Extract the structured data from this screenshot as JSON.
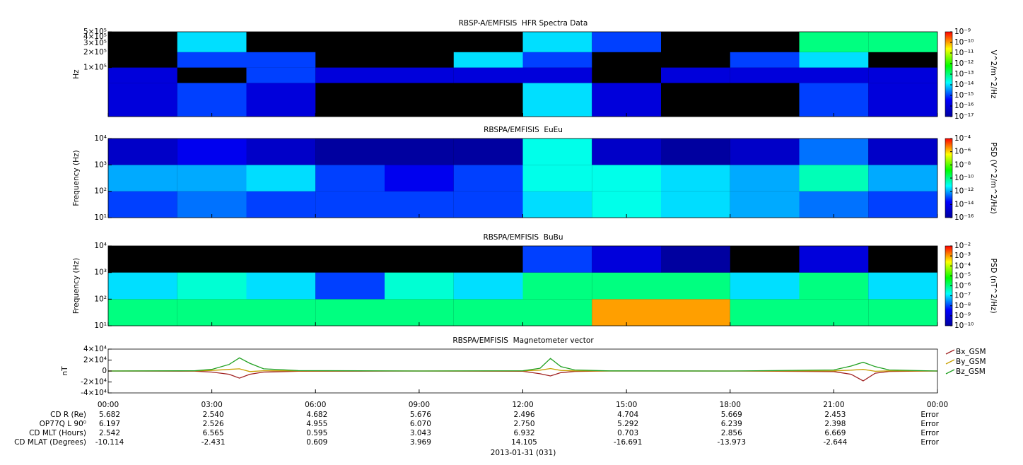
{
  "chart_data": [
    {
      "type": "heatmap",
      "title": "RBSP-A/EMFISIS  HFR Spectra Data",
      "y_label": "Hz",
      "log_y": true,
      "xlim": [
        0,
        24
      ],
      "xticks": [
        0,
        3,
        6,
        9,
        12,
        15,
        18,
        21,
        24
      ],
      "ylim": [
        11000,
        500000
      ],
      "yticks": [
        {
          "value": 100000,
          "label": "1×10⁵"
        },
        {
          "value": 200000,
          "label": "2×10⁵"
        },
        {
          "value": 300000,
          "label": "3×10⁵"
        },
        {
          "value": 400000,
          "label": "4×10⁵"
        },
        {
          "value": 500000,
          "label": "5×10⁵"
        }
      ],
      "x_edges": [
        0,
        2,
        4,
        6,
        8,
        10,
        12,
        14,
        16,
        18,
        20,
        22,
        24
      ],
      "y_edges": [
        11000,
        50000,
        100000,
        200000,
        500000
      ],
      "z": [
        [
          1e-16,
          1e-15,
          1e-16,
          null,
          null,
          null,
          1e-14,
          1e-16,
          null,
          null,
          1e-15,
          1e-16
        ],
        [
          1e-16,
          null,
          1e-15,
          1e-16,
          1e-16,
          1e-16,
          1e-16,
          null,
          1e-16,
          1e-16,
          1e-16,
          1e-16
        ],
        [
          null,
          1e-15,
          1e-15,
          null,
          null,
          1e-14,
          1e-15,
          null,
          null,
          1e-15,
          1e-14,
          null
        ],
        [
          null,
          1e-14,
          null,
          null,
          null,
          null,
          1e-14,
          1e-15,
          null,
          null,
          1e-13,
          1e-13
        ]
      ],
      "colorbar": {
        "label": "V^2/m^2/Hz",
        "lim": [
          1e-17,
          1e-09
        ],
        "colors": [
          "#0000a0",
          "#0000ff",
          "#00ffff",
          "#00ff00",
          "#ffff00",
          "#ff0000"
        ],
        "ticks": [
          {
            "value": 1e-09,
            "label": "10⁻⁹"
          },
          {
            "value": 1e-10,
            "label": "10⁻¹⁰"
          },
          {
            "value": 1e-11,
            "label": "10⁻¹¹"
          },
          {
            "value": 1e-12,
            "label": "10⁻¹²"
          },
          {
            "value": 1e-13,
            "label": "10⁻¹³"
          },
          {
            "value": 1e-14,
            "label": "10⁻¹⁴"
          },
          {
            "value": 1e-15,
            "label": "10⁻¹⁵"
          },
          {
            "value": 1e-16,
            "label": "10⁻¹⁶"
          },
          {
            "value": 1e-17,
            "label": "10⁻¹⁷"
          }
        ]
      }
    },
    {
      "type": "heatmap",
      "title": "RBSPA/EMFISIS  EuEu",
      "y_label": "Frequency (Hz)",
      "log_y": true,
      "xlim": [
        0,
        24
      ],
      "xticks": [
        0,
        3,
        6,
        9,
        12,
        15,
        18,
        21,
        24
      ],
      "ylim": [
        10,
        10000
      ],
      "yticks": [
        {
          "value": 10,
          "label": "10¹"
        },
        {
          "value": 100,
          "label": "10²"
        },
        {
          "value": 1000,
          "label": "10³"
        },
        {
          "value": 10000,
          "label": "10⁴"
        }
      ],
      "x_edges": [
        0,
        2,
        4,
        6,
        8,
        10,
        12,
        14,
        16,
        18,
        20,
        22,
        24
      ],
      "y_edges": [
        10,
        100,
        1000,
        10000
      ],
      "z": [
        [
          1e-13,
          3e-13,
          1e-13,
          1e-13,
          1e-13,
          1e-13,
          3e-12,
          1e-11,
          3e-12,
          1e-12,
          3e-13,
          1e-13
        ],
        [
          1e-12,
          1e-12,
          3e-12,
          1e-13,
          1e-14,
          1e-13,
          1e-11,
          1e-11,
          3e-12,
          1e-12,
          3e-11,
          1e-12
        ],
        [
          1e-15,
          1e-14,
          1e-15,
          1e-16,
          1e-16,
          1e-16,
          1e-11,
          1e-15,
          1e-16,
          1e-15,
          3e-13,
          1e-15
        ]
      ],
      "colorbar": {
        "label": "PSD (V^2/m^2/Hz)",
        "lim": [
          1e-16,
          0.0001
        ],
        "colors": [
          "#0000a0",
          "#0000ff",
          "#00ffff",
          "#00ff00",
          "#ffff00",
          "#ff0000"
        ],
        "ticks": [
          {
            "value": 0.0001,
            "label": "10⁻⁴"
          },
          {
            "value": 1e-06,
            "label": "10⁻⁶"
          },
          {
            "value": 1e-08,
            "label": "10⁻⁸"
          },
          {
            "value": 1e-10,
            "label": "10⁻¹⁰"
          },
          {
            "value": 1e-12,
            "label": "10⁻¹²"
          },
          {
            "value": 1e-14,
            "label": "10⁻¹⁴"
          },
          {
            "value": 1e-16,
            "label": "10⁻¹⁶"
          }
        ]
      }
    },
    {
      "type": "heatmap",
      "title": "RBSPA/EMFISIS  BuBu",
      "y_label": "Frequency (Hz)",
      "log_y": true,
      "xlim": [
        0,
        24
      ],
      "xticks": [
        0,
        3,
        6,
        9,
        12,
        15,
        18,
        21,
        24
      ],
      "ylim": [
        10,
        10000
      ],
      "yticks": [
        {
          "value": 10,
          "label": "10¹"
        },
        {
          "value": 100,
          "label": "10²"
        },
        {
          "value": 1000,
          "label": "10³"
        },
        {
          "value": 10000,
          "label": "10⁴"
        }
      ],
      "x_edges": [
        0,
        2,
        4,
        6,
        8,
        10,
        12,
        14,
        16,
        18,
        20,
        22,
        24
      ],
      "y_edges": [
        10,
        100,
        1000,
        10000
      ],
      "z": [
        [
          1e-06,
          1e-06,
          1e-06,
          1e-06,
          1e-06,
          1e-06,
          1e-06,
          0.001,
          0.001,
          1e-06,
          1e-06,
          1e-06
        ],
        [
          1e-07,
          3e-07,
          1e-07,
          1e-08,
          3e-07,
          1e-07,
          1e-06,
          1e-06,
          1e-06,
          1e-07,
          1e-06,
          1e-07
        ],
        [
          null,
          null,
          null,
          null,
          null,
          null,
          1e-08,
          1e-09,
          1e-10,
          null,
          1e-09,
          null
        ]
      ],
      "colorbar": {
        "label": "PSD (nT^2/Hz)",
        "lim": [
          1e-10,
          0.01
        ],
        "colors": [
          "#0000a0",
          "#0000ff",
          "#00ffff",
          "#00ff00",
          "#ffff00",
          "#ff0000"
        ],
        "ticks": [
          {
            "value": 0.01,
            "label": "10⁻²"
          },
          {
            "value": 0.001,
            "label": "10⁻³"
          },
          {
            "value": 0.0001,
            "label": "10⁻⁴"
          },
          {
            "value": 1e-05,
            "label": "10⁻⁵"
          },
          {
            "value": 1e-06,
            "label": "10⁻⁶"
          },
          {
            "value": 1e-07,
            "label": "10⁻⁷"
          },
          {
            "value": 1e-08,
            "label": "10⁻⁸"
          },
          {
            "value": 1e-09,
            "label": "10⁻⁹"
          },
          {
            "value": 1e-10,
            "label": "10⁻¹⁰"
          }
        ]
      }
    },
    {
      "type": "line",
      "title": "RBSPA/EMFISIS  Magnetometer vector",
      "y_label": "nT",
      "xlim": [
        0,
        24
      ],
      "xticks": [
        {
          "value": 0,
          "label": "00:00"
        },
        {
          "value": 3,
          "label": "03:00"
        },
        {
          "value": 6,
          "label": "06:00"
        },
        {
          "value": 9,
          "label": "09:00"
        },
        {
          "value": 12,
          "label": "12:00"
        },
        {
          "value": 15,
          "label": "15:00"
        },
        {
          "value": 18,
          "label": "18:00"
        },
        {
          "value": 21,
          "label": "21:00"
        },
        {
          "value": 24,
          "label": "00:00"
        }
      ],
      "ylim": [
        -40000,
        40000
      ],
      "yticks": [
        {
          "value": 40000,
          "label": "4×10⁴"
        },
        {
          "value": 20000,
          "label": "2×10⁴"
        },
        0,
        {
          "value": -20000,
          "label": "-2×10⁴"
        },
        {
          "value": -40000,
          "label": "-4×10⁴"
        }
      ],
      "x": [
        0,
        2.5,
        3,
        3.5,
        3.8,
        4.1,
        4.5,
        5.5,
        9,
        12,
        12.5,
        12.8,
        13.1,
        13.5,
        14.5,
        18,
        21,
        21.5,
        21.85,
        22.2,
        22.6,
        24
      ],
      "series": [
        {
          "name": "Bx_GSM",
          "color": "#a02020",
          "values": [
            0,
            -300,
            -2000,
            -6000,
            -13000,
            -6000,
            -2000,
            -500,
            0,
            -500,
            -5000,
            -9000,
            -3000,
            -800,
            0,
            0,
            -1000,
            -6000,
            -18000,
            -4000,
            -800,
            0
          ]
        },
        {
          "name": "By_GSM",
          "color": "#c8a000",
          "values": [
            0,
            200,
            1000,
            3000,
            4000,
            -1000,
            500,
            200,
            0,
            200,
            1500,
            4500,
            1000,
            300,
            0,
            0,
            300,
            1500,
            3000,
            -500,
            300,
            0
          ]
        },
        {
          "name": "Bz_GSM",
          "color": "#20a020",
          "values": [
            0,
            500,
            3000,
            12000,
            24000,
            14000,
            4000,
            800,
            0,
            500,
            5000,
            23000,
            8000,
            2000,
            300,
            0,
            2000,
            9000,
            16000,
            8000,
            2000,
            0
          ]
        }
      ]
    }
  ],
  "ephemeris": {
    "rows": [
      {
        "label": "CD R (Re)",
        "values": [
          "5.682",
          "2.540",
          "4.682",
          "5.676",
          "2.496",
          "4.704",
          "5.669",
          "2.453",
          "Error"
        ]
      },
      {
        "label": "OP77Q L 90⁰",
        "values": [
          "6.197",
          "2.526",
          "4.955",
          "6.070",
          "2.750",
          "5.292",
          "6.239",
          "2.398",
          "Error"
        ]
      },
      {
        "label": "CD MLT (Hours)",
        "values": [
          "2.542",
          "6.565",
          "0.595",
          "3.043",
          "6.932",
          "0.703",
          "2.856",
          "6.669",
          "Error"
        ]
      },
      {
        "label": "CD MLAT (Degrees)",
        "values": [
          "-10.114",
          "-2.431",
          "0.609",
          "3.969",
          "14.105",
          "-16.691",
          "-13.973",
          "-2.644",
          "Error"
        ]
      }
    ],
    "date": "2013-01-31 (031)"
  }
}
